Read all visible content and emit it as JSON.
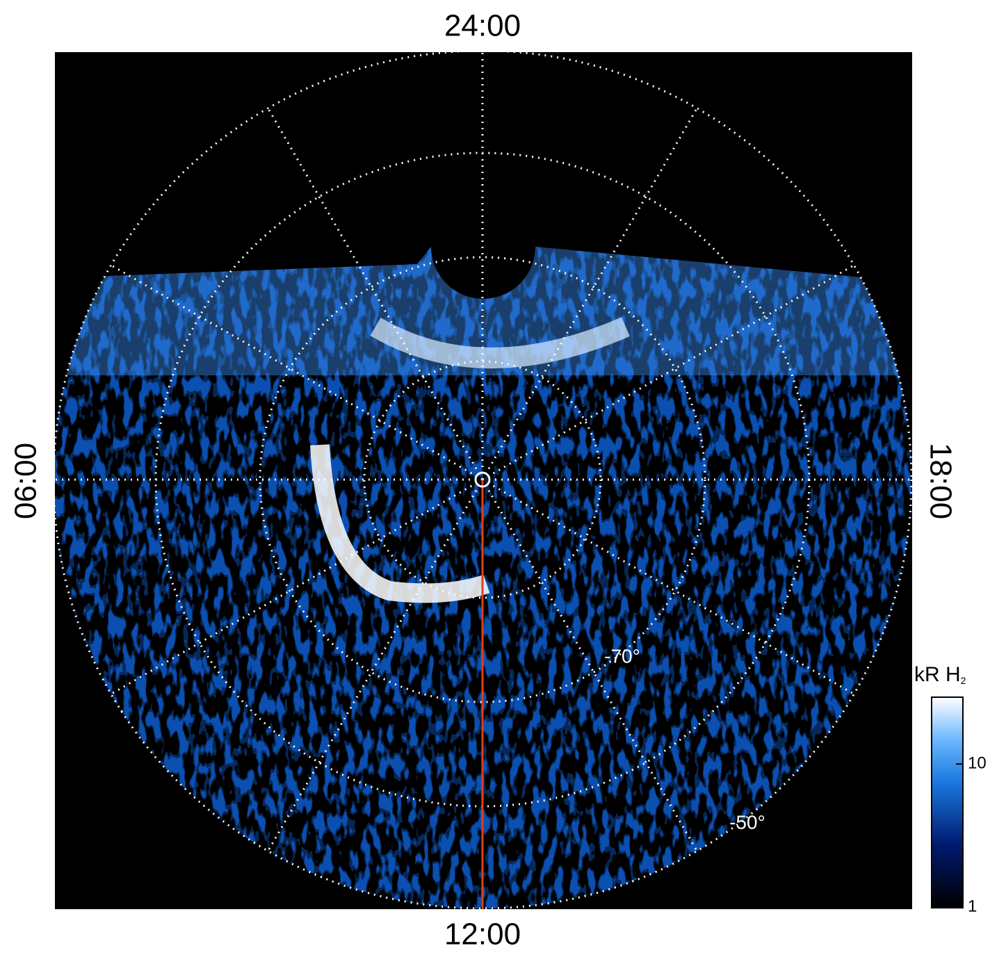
{
  "chart_data": {
    "type": "polar_map",
    "local_time_labels": {
      "top": "24:00",
      "bottom": "12:00",
      "left": "06:00",
      "right": "18:00"
    },
    "latitude_labels": [
      "-70°",
      "-50°"
    ],
    "colorbar": {
      "label": "kR H",
      "label_subscript": "2",
      "scale": "log",
      "lim": [
        1,
        29
      ],
      "ticks": [
        1,
        10
      ]
    }
  }
}
